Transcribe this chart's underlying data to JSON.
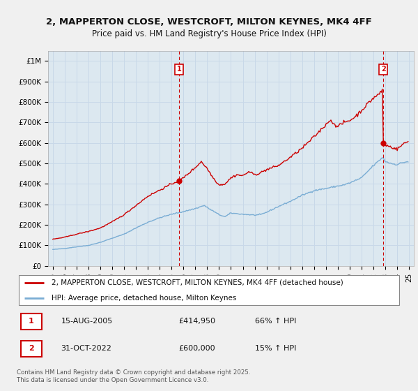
{
  "title": "2, MAPPERTON CLOSE, WESTCROFT, MILTON KEYNES, MK4 4FF",
  "subtitle": "Price paid vs. HM Land Registry's House Price Index (HPI)",
  "footer": "Contains HM Land Registry data © Crown copyright and database right 2025.\nThis data is licensed under the Open Government Licence v3.0.",
  "legend_line1": "2, MAPPERTON CLOSE, WESTCROFT, MILTON KEYNES, MK4 4FF (detached house)",
  "legend_line2": "HPI: Average price, detached house, Milton Keynes",
  "annotation1_label": "1",
  "annotation1_date": "15-AUG-2005",
  "annotation1_price": "£414,950",
  "annotation1_hpi": "66% ↑ HPI",
  "annotation2_label": "2",
  "annotation2_date": "31-OCT-2022",
  "annotation2_price": "£600,000",
  "annotation2_hpi": "15% ↑ HPI",
  "line_color_red": "#cc0000",
  "line_color_blue": "#7aadd4",
  "dot_color": "#cc0000",
  "annotation_color": "#cc0000",
  "grid_color": "#c8d8e8",
  "chart_bg_color": "#dce8f0",
  "background_color": "#f0f0f0",
  "outer_bg_color": "#f0f0f0",
  "ylim_min": 0,
  "ylim_max": 1050000,
  "yticks": [
    0,
    100000,
    200000,
    300000,
    400000,
    500000,
    600000,
    700000,
    800000,
    900000,
    1000000
  ],
  "ytick_labels": [
    "£0",
    "£100K",
    "£200K",
    "£300K",
    "£400K",
    "£500K",
    "£600K",
    "£700K",
    "£800K",
    "£900K",
    "£1M"
  ],
  "sale1_x": 2005.62,
  "sale1_y": 414950,
  "sale2_x": 2022.83,
  "sale2_y": 600000,
  "xtick_years": [
    "95",
    "96",
    "97",
    "98",
    "99",
    "00",
    "01",
    "02",
    "03",
    "04",
    "05",
    "06",
    "07",
    "08",
    "09",
    "10",
    "11",
    "12",
    "13",
    "14",
    "15",
    "16",
    "17",
    "18",
    "19",
    "20",
    "21",
    "22",
    "23",
    "24",
    "25"
  ],
  "xtick_positions": [
    1995,
    1996,
    1997,
    1998,
    1999,
    2000,
    2001,
    2002,
    2003,
    2004,
    2005,
    2006,
    2007,
    2008,
    2009,
    2010,
    2011,
    2012,
    2013,
    2014,
    2015,
    2016,
    2017,
    2018,
    2019,
    2020,
    2021,
    2022,
    2023,
    2024,
    2025
  ]
}
